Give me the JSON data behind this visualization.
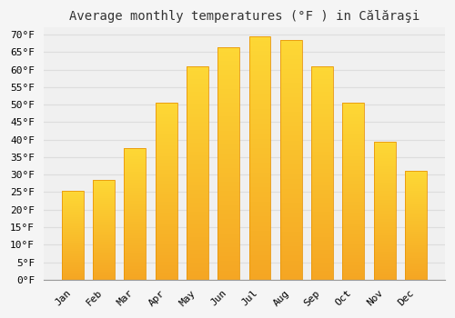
{
  "title": "Average monthly temperatures (°F ) in Călăraşi",
  "months": [
    "Jan",
    "Feb",
    "Mar",
    "Apr",
    "May",
    "Jun",
    "Jul",
    "Aug",
    "Sep",
    "Oct",
    "Nov",
    "Dec"
  ],
  "values": [
    25.5,
    28.5,
    37.5,
    50.5,
    61.0,
    66.5,
    69.5,
    68.5,
    61.0,
    50.5,
    39.5,
    31.0
  ],
  "bar_color_top": "#FDD835",
  "bar_color_bottom": "#F5A623",
  "bar_edge_color": "#E8960A",
  "background_color": "#f5f5f5",
  "plot_bg_color": "#f0f0f0",
  "grid_color": "#dddddd",
  "ylim": [
    0,
    72
  ],
  "yticks": [
    0,
    5,
    10,
    15,
    20,
    25,
    30,
    35,
    40,
    45,
    50,
    55,
    60,
    65,
    70
  ],
  "title_fontsize": 10,
  "tick_fontsize": 8,
  "figsize": [
    5.0,
    3.5
  ],
  "dpi": 100
}
